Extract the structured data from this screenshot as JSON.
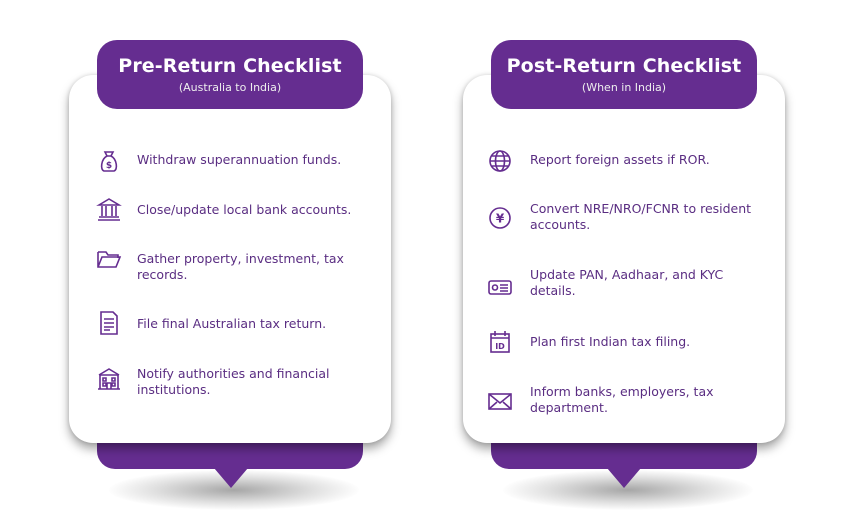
{
  "colors": {
    "brand": "#652d90",
    "text": "#5a2d82"
  },
  "pre": {
    "title": "Pre-Return Checklist",
    "subtitle": "(Australia to India)",
    "items": [
      {
        "icon": "money-bag-icon",
        "text": "Withdraw superannuation funds."
      },
      {
        "icon": "bank-icon",
        "text": "Close/update local bank accounts."
      },
      {
        "icon": "folder-icon",
        "text": "Gather property, investment, tax records."
      },
      {
        "icon": "document-icon",
        "text": "File final Australian tax return."
      },
      {
        "icon": "building-icon",
        "text": "Notify authorities and financial institutions."
      }
    ]
  },
  "post": {
    "title": "Post-Return Checklist",
    "subtitle": "(When in India)",
    "items": [
      {
        "icon": "globe-icon",
        "text": "Report foreign assets if ROR."
      },
      {
        "icon": "currency-icon",
        "text": "Convert NRE/NRO/FCNR to resident accounts."
      },
      {
        "icon": "id-card-icon",
        "text": "Update PAN, Aadhaar, and KYC details."
      },
      {
        "icon": "calendar-id-icon",
        "text": "Plan first Indian tax filing."
      },
      {
        "icon": "envelope-icon",
        "text": "Inform banks, employers, tax department."
      }
    ]
  }
}
